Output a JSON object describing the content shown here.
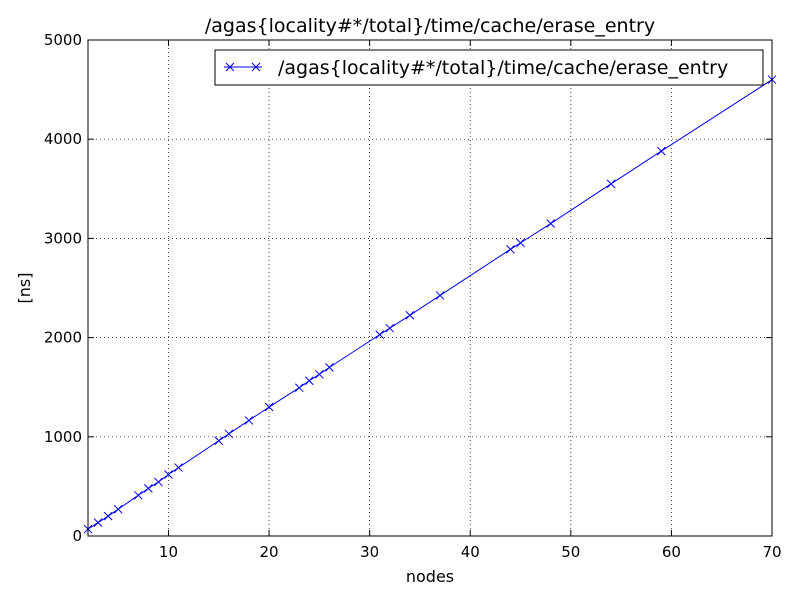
{
  "chart_data": {
    "type": "line",
    "title": "/agas{locality#*/total}/time/cache/erase_entry",
    "xlabel": "nodes",
    "ylabel": "[ns]",
    "xlim": [
      2,
      70
    ],
    "ylim": [
      0,
      5000
    ],
    "x_ticks": [
      10,
      20,
      30,
      40,
      50,
      60,
      70
    ],
    "y_ticks": [
      0,
      1000,
      2000,
      3000,
      4000,
      5000
    ],
    "grid": true,
    "legend_position": "top-right",
    "series": [
      {
        "name": "/agas{locality#*/total}/time/cache/erase_entry",
        "color": "#0000ff",
        "marker": "x",
        "points": [
          [
            2,
            70
          ],
          [
            3,
            135
          ],
          [
            4,
            200
          ],
          [
            5,
            270
          ],
          [
            7,
            410
          ],
          [
            8,
            480
          ],
          [
            9,
            545
          ],
          [
            10,
            620
          ],
          [
            11,
            690
          ],
          [
            15,
            960
          ],
          [
            16,
            1030
          ],
          [
            18,
            1165
          ],
          [
            20,
            1300
          ],
          [
            23,
            1495
          ],
          [
            24,
            1565
          ],
          [
            25,
            1630
          ],
          [
            26,
            1700
          ],
          [
            31,
            2030
          ],
          [
            32,
            2095
          ],
          [
            34,
            2225
          ],
          [
            37,
            2425
          ],
          [
            44,
            2890
          ],
          [
            45,
            2955
          ],
          [
            48,
            3150
          ],
          [
            54,
            3550
          ],
          [
            59,
            3880
          ],
          [
            70,
            4600
          ]
        ]
      }
    ]
  }
}
